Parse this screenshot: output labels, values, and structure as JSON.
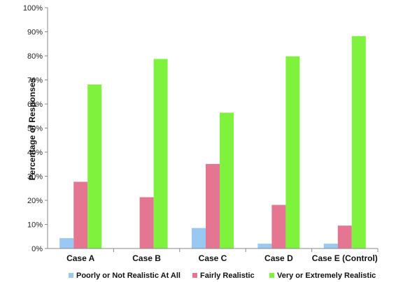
{
  "chart_data": {
    "type": "bar",
    "categories": [
      "Case A",
      "Case B",
      "Case C",
      "Case D",
      "Case E (Control)"
    ],
    "series": [
      {
        "name": "Poorly or Not Realistic At All",
        "color": "#99c9f3",
        "values": [
          4.3,
          0,
          8.5,
          2.0,
          2.0
        ]
      },
      {
        "name": "Fairly Realistic",
        "color": "#e47691",
        "values": [
          27.7,
          21.3,
          35.1,
          18.1,
          9.5
        ]
      },
      {
        "name": "Very or Extremely Realistic",
        "color": "#7ff23e",
        "values": [
          68.1,
          78.7,
          56.4,
          79.8,
          88.2
        ]
      }
    ],
    "title": "",
    "xlabel": "",
    "ylabel": "Percentage of Responses",
    "ylim": [
      0,
      100
    ],
    "ytick_step": 10,
    "ytick_suffix": "%",
    "grid": false,
    "legend_position": "bottom"
  }
}
